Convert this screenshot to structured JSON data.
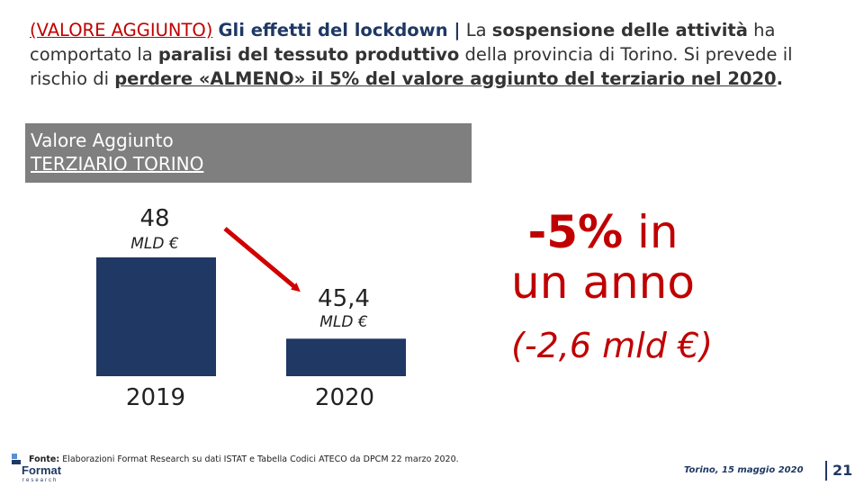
{
  "headline": {
    "tag": "(VALORE AGGIUNTO)",
    "topic": "Gli effetti del lockdown |",
    "t1": " La ",
    "b1": "sospensione delle attività",
    "t2": " ha comportato la ",
    "b2": "paralisi del tessuto produttivo",
    "t3": " della provincia di Torino. Si prevede il rischio di ",
    "u1": "perdere «ALMENO» il 5% del valore aggiunto del terziario nel 2020",
    "end": "."
  },
  "box": {
    "line1": "Valore Aggiunto",
    "line2": "TERZIARIO TORINO"
  },
  "chart_data": {
    "type": "bar",
    "categories": [
      "2019",
      "2020"
    ],
    "values": [
      48,
      45.4
    ],
    "value_labels": [
      "48",
      "45,4"
    ],
    "unit_label": "MLD €",
    "bar_color": "#1f3864",
    "arrow_color": "#d00000"
  },
  "callout": {
    "pct": "-5%",
    "in": " in",
    "line2": "un anno",
    "sub": "(-2,6 mld €)"
  },
  "footer": {
    "source_label": "Fonte:",
    "source_text": " Elaborazioni Format Research su dati ISTAT e Tabella Codici ATECO da DPCM 22 marzo 2020.",
    "logo_text": "Format",
    "logo_sub": "research",
    "date": "Torino, 15 maggio 2020",
    "page": "21"
  }
}
